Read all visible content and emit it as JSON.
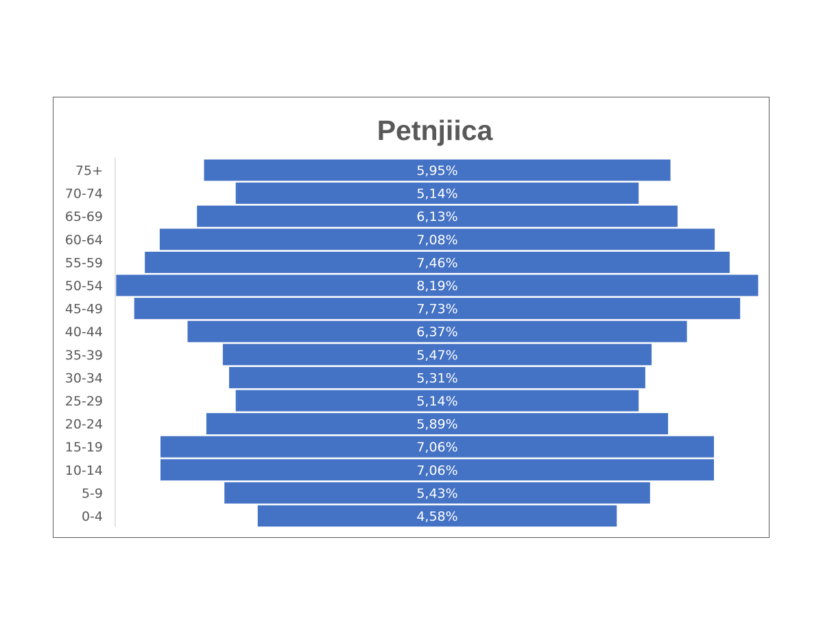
{
  "chart_data": {
    "type": "bar",
    "orientation": "horizontal",
    "style": "population-pyramid (centered bars)",
    "title": "Petnjiica",
    "xlabel": "",
    "ylabel": "",
    "categories": [
      "75+",
      "70-74",
      "65-69",
      "60-64",
      "55-59",
      "50-54",
      "45-49",
      "40-44",
      "35-39",
      "30-34",
      "25-29",
      "20-24",
      "15-19",
      "10-14",
      "5-9",
      "0-4"
    ],
    "values": [
      5.95,
      5.14,
      6.13,
      7.08,
      7.46,
      8.19,
      7.73,
      6.37,
      5.47,
      5.31,
      5.14,
      5.89,
      7.06,
      7.06,
      5.43,
      4.58
    ],
    "data_labels": [
      "5,95%",
      "5,14%",
      "6,13%",
      "7,08%",
      "7,46%",
      "8,19%",
      "7,73%",
      "6,37%",
      "5,47%",
      "5,31%",
      "5,14%",
      "5,89%",
      "7,06%",
      "7,06%",
      "5,43%",
      "4,58%"
    ],
    "legend": "none",
    "grid": false,
    "colors": {
      "bar": "#4472c4",
      "bar_label": "#ffffff",
      "text": "#595959",
      "axis": "#d9d9d9",
      "border": "#595959"
    }
  }
}
